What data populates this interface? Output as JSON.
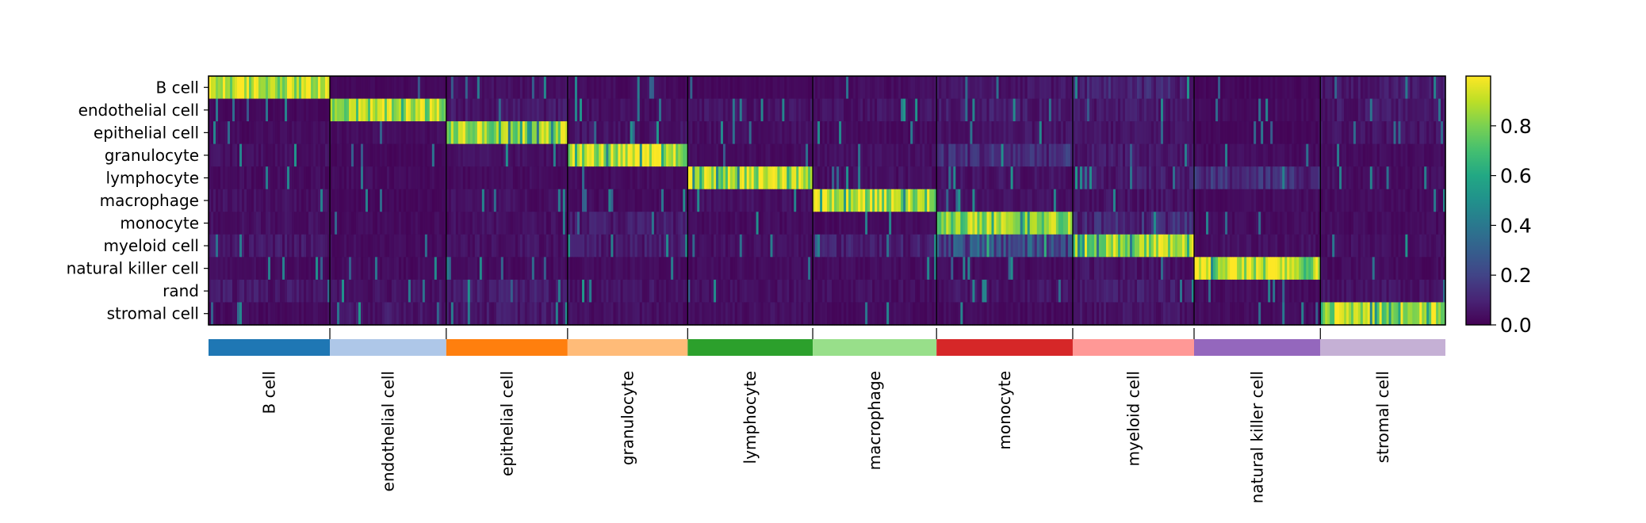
{
  "chart_data": {
    "type": "heatmap",
    "rows": [
      "B cell",
      "endothelial cell",
      "epithelial cell",
      "granulocyte",
      "lymphocyte",
      "macrophage",
      "monocyte",
      "myeloid cell",
      "natural killer cell",
      "rand",
      "stromal cell"
    ],
    "groups": [
      {
        "name": "B cell",
        "color": "#1f77b4",
        "fraction": 0.098
      },
      {
        "name": "endothelial cell",
        "color": "#aec7e8",
        "fraction": 0.094
      },
      {
        "name": "epithelial cell",
        "color": "#ff7f0e",
        "fraction": 0.098
      },
      {
        "name": "granulocyte",
        "color": "#ffbb78",
        "fraction": 0.097
      },
      {
        "name": "lymphocyte",
        "color": "#2ca02c",
        "fraction": 0.101
      },
      {
        "name": "macrophage",
        "color": "#98df8a",
        "fraction": 0.1
      },
      {
        "name": "monocyte",
        "color": "#d62728",
        "fraction": 0.11
      },
      {
        "name": "myeloid cell",
        "color": "#ff9896",
        "fraction": 0.098
      },
      {
        "name": "natural killer cell",
        "color": "#9467bd",
        "fraction": 0.102
      },
      {
        "name": "stromal cell",
        "color": "#c5b0d5",
        "fraction": 0.101
      }
    ],
    "row_group_match": [
      0,
      1,
      2,
      3,
      4,
      5,
      6,
      7,
      8,
      -1,
      9
    ],
    "mean_values": [
      [
        0.93,
        0.02,
        0.04,
        0.03,
        0.02,
        0.03,
        0.05,
        0.1,
        0.02,
        0.06
      ],
      [
        0.02,
        0.9,
        0.06,
        0.04,
        0.05,
        0.05,
        0.07,
        0.06,
        0.03,
        0.06
      ],
      [
        0.03,
        0.03,
        0.88,
        0.05,
        0.04,
        0.03,
        0.05,
        0.05,
        0.02,
        0.05
      ],
      [
        0.04,
        0.02,
        0.04,
        0.92,
        0.03,
        0.04,
        0.12,
        0.06,
        0.03,
        0.03
      ],
      [
        0.03,
        0.03,
        0.03,
        0.03,
        0.93,
        0.04,
        0.05,
        0.07,
        0.12,
        0.04
      ],
      [
        0.04,
        0.02,
        0.04,
        0.03,
        0.04,
        0.92,
        0.04,
        0.05,
        0.03,
        0.03
      ],
      [
        0.04,
        0.03,
        0.04,
        0.07,
        0.03,
        0.03,
        0.85,
        0.12,
        0.03,
        0.03
      ],
      [
        0.06,
        0.03,
        0.05,
        0.07,
        0.04,
        0.08,
        0.22,
        0.86,
        0.04,
        0.04
      ],
      [
        0.03,
        0.03,
        0.03,
        0.03,
        0.03,
        0.03,
        0.03,
        0.05,
        0.94,
        0.03
      ],
      [
        0.06,
        0.05,
        0.07,
        0.05,
        0.04,
        0.04,
        0.05,
        0.07,
        0.03,
        0.05
      ],
      [
        0.03,
        0.06,
        0.06,
        0.04,
        0.04,
        0.03,
        0.03,
        0.05,
        0.03,
        0.91
      ]
    ],
    "value_range": [
      0,
      1
    ],
    "colormap": "viridis",
    "colorbar_ticks": [
      "0.0",
      "0.2",
      "0.4",
      "0.6",
      "0.8"
    ],
    "title": "",
    "xlabel": "",
    "ylabel": ""
  }
}
